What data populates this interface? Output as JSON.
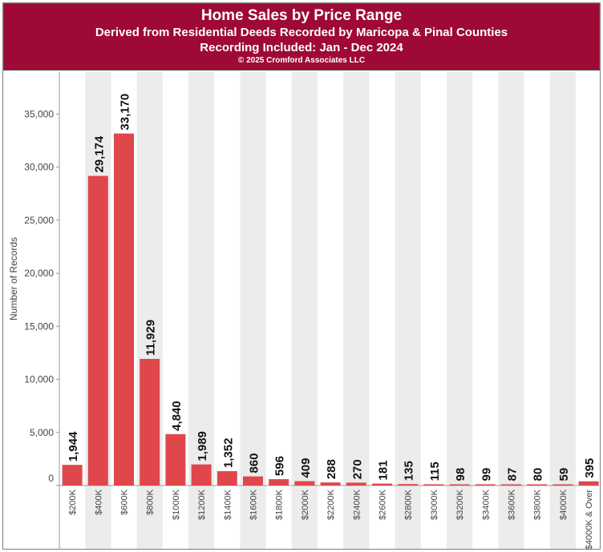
{
  "header": {
    "title": "Home Sales by Price Range",
    "subtitle1": "Derived from Residential Deeds Recorded by Maricopa & Pinal Counties",
    "subtitle2": "Recording Included: Jan - Dec 2024",
    "copyright": "© 2025 Cromford Associates LLC"
  },
  "colors": {
    "header_bg": "#9e0a35",
    "bar": "#e0474c",
    "band": "#ececec"
  },
  "chart_data": {
    "type": "bar",
    "title": "Home Sales by Price Range",
    "xlabel": "",
    "ylabel": "Number of Records",
    "ylim": [
      0,
      38500
    ],
    "yticks": [
      0,
      5000,
      10000,
      15000,
      20000,
      25000,
      30000,
      35000
    ],
    "ytick_labels": [
      "0",
      "5,000",
      "10,000",
      "15,000",
      "20,000",
      "25,000",
      "30,000",
      "35,000"
    ],
    "categories": [
      "$200K",
      "$400K",
      "$600K",
      "$800K",
      "$1000K",
      "$1200K",
      "$1400K",
      "$1600K",
      "$1800K",
      "$2000K",
      "$2200K",
      "$2400K",
      "$2600K",
      "$2800K",
      "$3000K",
      "$3200K",
      "$3400K",
      "$3600K",
      "$3800K",
      "$4000K",
      "$4000K & Over"
    ],
    "values": [
      1944,
      29174,
      33170,
      11929,
      4840,
      1989,
      1352,
      860,
      596,
      409,
      288,
      270,
      181,
      135,
      115,
      98,
      99,
      87,
      80,
      59,
      395
    ],
    "value_labels": [
      "1,944",
      "29,174",
      "33,170",
      "11,929",
      "4,840",
      "1,989",
      "1,352",
      "860",
      "596",
      "409",
      "288",
      "270",
      "181",
      "135",
      "115",
      "98",
      "99",
      "87",
      "80",
      "59",
      "395"
    ],
    "grid": false,
    "alternating_bands": true
  }
}
